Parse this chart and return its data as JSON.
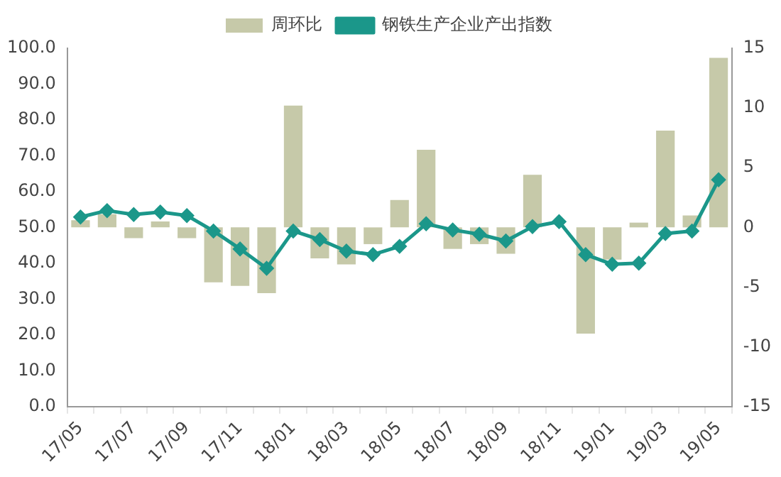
{
  "chart_data": {
    "type": "bar",
    "categories": [
      "17/05",
      null,
      "17/07",
      null,
      "17/09",
      null,
      "17/11",
      null,
      "18/01",
      null,
      "18/03",
      null,
      "18/05",
      null,
      "18/07",
      null,
      "18/09",
      null,
      "18/11",
      null,
      "19/01",
      null,
      "19/03",
      null,
      "19/05"
    ],
    "series": [
      {
        "name": "周环比",
        "axis": "y2",
        "color": "#c6c9a9",
        "values": [
          0.6,
          1.1,
          -0.9,
          0.5,
          -0.9,
          -4.6,
          -4.9,
          -5.5,
          10.2,
          -2.6,
          -3.1,
          -1.4,
          2.3,
          6.5,
          -1.8,
          -1.4,
          -2.2,
          4.4,
          null,
          -8.9,
          -2.7,
          0.4,
          8.1,
          1.0,
          14.2
        ]
      },
      {
        "name": "钢铁生产企业产出指数",
        "type": "line",
        "color": "#1b978a",
        "values": [
          52.9,
          54.7,
          53.6,
          54.3,
          53.3,
          49.0,
          44.0,
          38.6,
          49.0,
          46.6,
          43.4,
          42.4,
          44.7,
          51.0,
          49.3,
          48.1,
          46.2,
          50.2,
          51.6,
          42.4,
          39.7,
          40.0,
          48.3,
          49.0,
          63.3
        ]
      }
    ],
    "ylim": [
      0,
      100
    ],
    "yticks": [
      {
        "value": 0,
        "label": "0.0"
      },
      {
        "value": 10,
        "label": "10.0"
      },
      {
        "value": 20,
        "label": "20.0"
      },
      {
        "value": 30,
        "label": "30.0"
      },
      {
        "value": 40,
        "label": "40.0"
      },
      {
        "value": 50,
        "label": "50.0"
      },
      {
        "value": 60,
        "label": "60.0"
      },
      {
        "value": 70,
        "label": "70.0"
      },
      {
        "value": 80,
        "label": "80.0"
      },
      {
        "value": 90,
        "label": "90.0"
      },
      {
        "value": 100,
        "label": "100.0"
      }
    ],
    "y2lim": [
      -15,
      15
    ],
    "y2ticks": [
      -15,
      -10,
      -5,
      0,
      5,
      10,
      15
    ],
    "legend": "top",
    "grid": false,
    "marker": "diamond"
  }
}
